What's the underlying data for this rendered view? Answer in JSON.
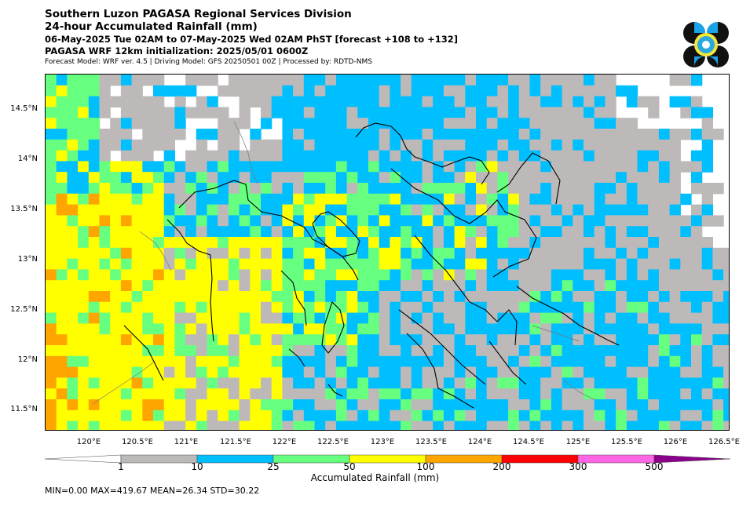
{
  "title": {
    "line1": "Southern Luzon PAGASA Regional Services Division",
    "line2": "24-hour Accumulated Rainfall (mm)",
    "line3": "06-May-2025 Tue 02AM to 07-May-2025 Wed 02AM PhST [forecast +108 to +132]",
    "line4": "PAGASA WRF 12km initialization: 2025/05/01 0600Z",
    "line5": "Forecast Model: WRF ver. 4.5 | Driving Model: GFS 20250501 00Z | Processed by: RDTD-NMS"
  },
  "logo": {
    "name": "pagasa-logo"
  },
  "map": {
    "lat_labels": [
      "14.5°N",
      "14°N",
      "13.5°N",
      "13°N",
      "12.5°N",
      "12°N",
      "11.5°N"
    ],
    "lon_labels": [
      "120°E",
      "120.5°E",
      "121°E",
      "121.5°E",
      "122°E",
      "122.5°E",
      "123°E",
      "123.5°E",
      "124°E",
      "124.5°E",
      "125°E",
      "125.5°E",
      "126°E",
      "126.5°E"
    ]
  },
  "colorbar": {
    "label": "Accumulated Rainfall (mm)",
    "ticks": [
      "1",
      "10",
      "25",
      "50",
      "100",
      "200",
      "300",
      "500"
    ],
    "colors": [
      "#ffffff",
      "#bdb9b9",
      "#00bfff",
      "#66ff80",
      "#ffff00",
      "#ffa500",
      "#ff0000",
      "#ff66e6",
      "#8b008b"
    ]
  },
  "stats": "MIN=0.00   MAX=419.67   MEAN=26.34   STD=30.22"
}
